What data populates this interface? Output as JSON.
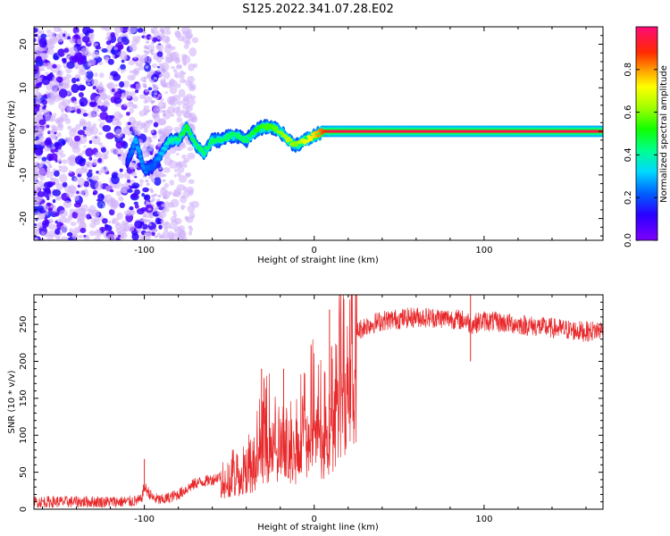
{
  "figure_title": "S125.2022.341.07.28.E02",
  "chart_data": [
    {
      "type": "heatmap",
      "title": "",
      "xlabel": "Height of straight line (km)",
      "ylabel": "Frequency (Hz)",
      "xlim": [
        -165,
        170
      ],
      "ylim": [
        -25,
        24
      ],
      "x_ticks": [
        -100,
        0,
        100
      ],
      "y_ticks": [
        -20,
        -10,
        0,
        10,
        20
      ],
      "grid": false,
      "colorbar": {
        "label": "Normalized spectral amplitude",
        "range": [
          0.0,
          1.0
        ],
        "ticks": [
          0.0,
          0.2,
          0.4,
          0.6,
          0.8
        ],
        "tick_labels": [
          "0.0",
          "0.2",
          "0.4",
          "0.6",
          "0.8"
        ],
        "colormap": "gist_rainbow_r"
      },
      "ridge": {
        "description_values": "peak frequency vs height",
        "x": [
          -110,
          -105,
          -100,
          -95,
          -90,
          -85,
          -80,
          -75,
          -70,
          -65,
          -60,
          -55,
          -50,
          -45,
          -40,
          -35,
          -30,
          -25,
          -20,
          -15,
          -12,
          -10,
          -5,
          0,
          5,
          10,
          20,
          40,
          60,
          80,
          100,
          120,
          140,
          160,
          170
        ],
        "y": [
          -7,
          -2,
          -9,
          -8,
          -5,
          -2,
          -2,
          1,
          -3,
          -5,
          -2,
          -2,
          -1,
          -1,
          -2,
          0,
          1,
          1,
          0,
          -2,
          -3,
          -3,
          -2,
          -1,
          0,
          0,
          0,
          0,
          0,
          0,
          0,
          0,
          0,
          0,
          0
        ],
        "amplitude": [
          0.15,
          0.3,
          0.25,
          0.2,
          0.3,
          0.4,
          0.45,
          0.5,
          0.45,
          0.45,
          0.45,
          0.45,
          0.45,
          0.45,
          0.45,
          0.5,
          0.55,
          0.55,
          0.6,
          0.65,
          0.6,
          0.6,
          0.7,
          0.75,
          0.85,
          0.95,
          0.95,
          0.95,
          0.95,
          0.95,
          0.95,
          0.95,
          0.95,
          0.95,
          0.95
        ]
      },
      "noise_region_x": [
        -165,
        -90
      ]
    },
    {
      "type": "line",
      "title": "",
      "xlabel": "Height of straight line (km)",
      "ylabel": "SNR (10 * v/v)",
      "xlim": [
        -165,
        170
      ],
      "ylim": [
        0,
        290
      ],
      "x_ticks": [
        -100,
        0,
        100
      ],
      "y_ticks": [
        0,
        50,
        100,
        150,
        200,
        250
      ],
      "grid": false,
      "series": [
        {
          "color": "#e8282a",
          "envelope_x": [
            -165,
            -150,
            -130,
            -110,
            -102,
            -100,
            -95,
            -90,
            -80,
            -70,
            -60,
            -50,
            -40,
            -35,
            -30,
            -25,
            -20,
            -15,
            -10,
            -5,
            0,
            5,
            8,
            10,
            15,
            20,
            25,
            30,
            40,
            60,
            80,
            90,
            92,
            100,
            120,
            140,
            160,
            170
          ],
          "envelope_y": [
            10,
            10,
            10,
            10,
            12,
            30,
            15,
            12,
            20,
            35,
            40,
            50,
            65,
            80,
            115,
            120,
            90,
            95,
            110,
            140,
            150,
            130,
            110,
            160,
            200,
            225,
            240,
            248,
            255,
            260,
            258,
            255,
            250,
            255,
            250,
            245,
            240,
            243
          ],
          "spikes": [
            {
              "x": -100,
              "y": 68
            },
            {
              "x": -31,
              "y": 190
            },
            {
              "x": -18,
              "y": 190
            },
            {
              "x": 9,
              "y": 270
            },
            {
              "x": 92,
              "y": 290
            },
            {
              "x": 92,
              "y": 200
            }
          ]
        }
      ]
    }
  ]
}
